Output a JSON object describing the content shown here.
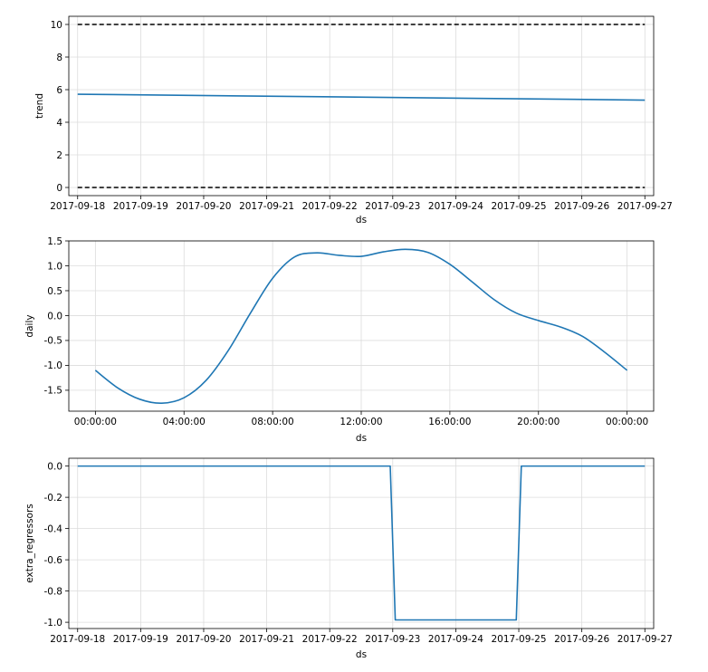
{
  "chart_data": [
    {
      "type": "line",
      "ylabel": "trend",
      "xlabel": "ds",
      "x_tick_labels": [
        "2017-09-18",
        "2017-09-19",
        "2017-09-20",
        "2017-09-21",
        "2017-09-22",
        "2017-09-23",
        "2017-09-24",
        "2017-09-25",
        "2017-09-26",
        "2017-09-27"
      ],
      "y_tick_labels": [
        "0",
        "2",
        "4",
        "6",
        "8",
        "10"
      ],
      "y_ticks": [
        0,
        2,
        4,
        6,
        8,
        10
      ],
      "xlim": [
        -0.14,
        9.14
      ],
      "ylim": [
        -0.5,
        10.5
      ],
      "grid": true,
      "series": [
        {
          "color": "#1f77b4",
          "style": "solid",
          "x": [
            0,
            9
          ],
          "y": [
            5.72,
            5.36
          ]
        },
        {
          "color": "#000000",
          "style": "dashed",
          "x": [
            0,
            9
          ],
          "y": [
            10,
            10
          ]
        },
        {
          "color": "#000000",
          "style": "dashed",
          "x": [
            0,
            9
          ],
          "y": [
            0,
            0
          ]
        }
      ]
    },
    {
      "type": "line",
      "ylabel": "daily",
      "xlabel": "ds",
      "x_tick_labels": [
        "00:00:00",
        "04:00:00",
        "08:00:00",
        "12:00:00",
        "16:00:00",
        "20:00:00",
        "00:00:00"
      ],
      "y_tick_labels": [
        "1.5",
        "1.0",
        "0.5",
        "0.0",
        "-0.5",
        "-1.0",
        "-1.5"
      ],
      "y_ticks": [
        1.5,
        1.0,
        0.5,
        0.0,
        -0.5,
        -1.0,
        -1.5
      ],
      "xlim": [
        -1.2,
        25.2
      ],
      "ylim": [
        -1.92,
        1.5
      ],
      "grid": true,
      "series": [
        {
          "color": "#1f77b4",
          "style": "solid",
          "x": [
            0,
            1,
            2,
            3,
            4,
            5,
            6,
            7,
            8,
            9,
            10,
            11,
            12,
            13,
            14,
            15,
            16,
            17,
            18,
            19,
            20,
            21,
            22,
            23,
            24
          ],
          "y": [
            -1.1,
            -1.45,
            -1.68,
            -1.76,
            -1.65,
            -1.3,
            -0.7,
            0.05,
            0.75,
            1.18,
            1.26,
            1.21,
            1.19,
            1.28,
            1.33,
            1.27,
            1.03,
            0.68,
            0.32,
            0.05,
            -0.1,
            -0.23,
            -0.42,
            -0.74,
            -1.1
          ]
        }
      ]
    },
    {
      "type": "line",
      "ylabel": "extra_regressors",
      "xlabel": "ds",
      "x_tick_labels": [
        "2017-09-18",
        "2017-09-19",
        "2017-09-20",
        "2017-09-21",
        "2017-09-22",
        "2017-09-23",
        "2017-09-24",
        "2017-09-25",
        "2017-09-26",
        "2017-09-27"
      ],
      "y_tick_labels": [
        "0.0",
        "-0.2",
        "-0.4",
        "-0.6",
        "-0.8",
        "-1.0"
      ],
      "y_ticks": [
        0.0,
        -0.2,
        -0.4,
        -0.6,
        -0.8,
        -1.0
      ],
      "xlim": [
        -0.14,
        9.14
      ],
      "ylim": [
        -1.04,
        0.05
      ],
      "grid": true,
      "series": [
        {
          "color": "#1f77b4",
          "style": "solid",
          "x": [
            0,
            4.96,
            5.04,
            6.96,
            7.04,
            9
          ],
          "y": [
            0,
            0,
            -0.985,
            -0.985,
            0,
            0
          ]
        }
      ]
    }
  ]
}
